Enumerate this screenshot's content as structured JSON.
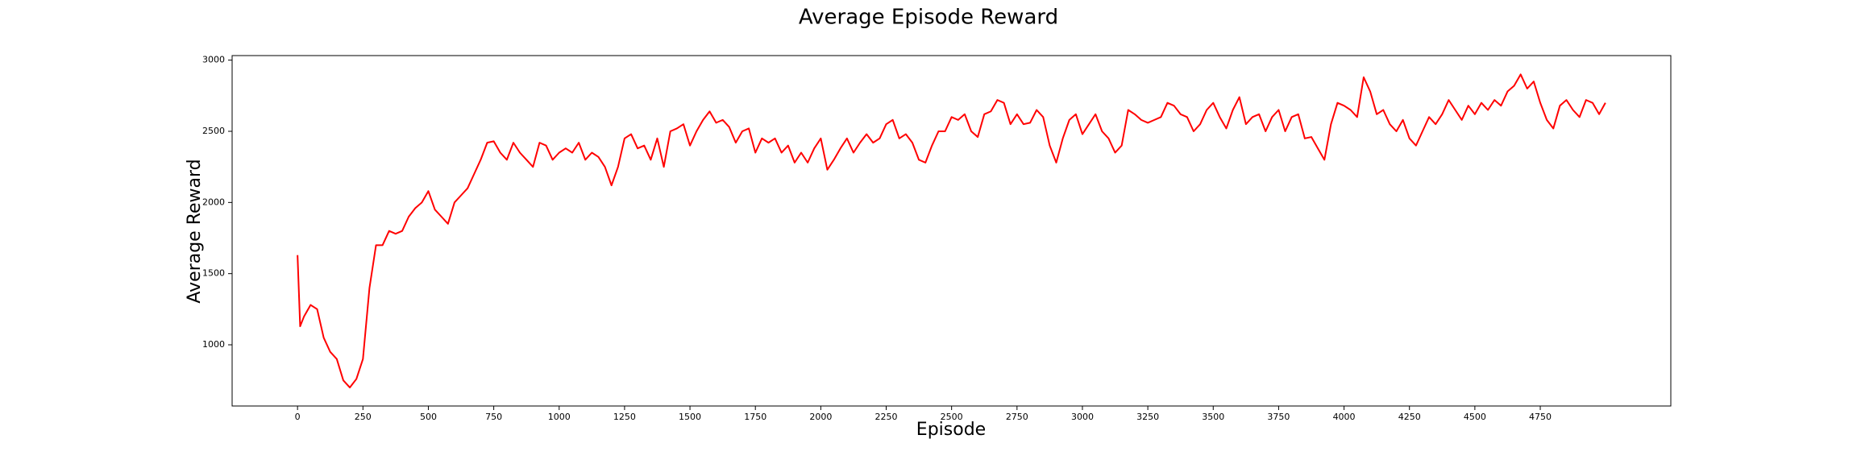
{
  "chart_data": {
    "type": "line",
    "title": "Average Episode Reward",
    "xlabel": "Episode",
    "ylabel": "Average Reward",
    "x": [
      0,
      10,
      25,
      50,
      75,
      100,
      125,
      150,
      175,
      200,
      225,
      250,
      275,
      300,
      325,
      350,
      375,
      400,
      425,
      450,
      475,
      500,
      525,
      550,
      575,
      600,
      625,
      650,
      675,
      700,
      725,
      750,
      775,
      800,
      825,
      850,
      875,
      900,
      925,
      950,
      975,
      1000,
      1025,
      1050,
      1075,
      1100,
      1125,
      1150,
      1175,
      1200,
      1225,
      1250,
      1275,
      1300,
      1325,
      1350,
      1375,
      1400,
      1425,
      1450,
      1475,
      1500,
      1525,
      1550,
      1575,
      1600,
      1625,
      1650,
      1675,
      1700,
      1725,
      1750,
      1775,
      1800,
      1825,
      1850,
      1875,
      1900,
      1925,
      1950,
      1975,
      2000,
      2025,
      2050,
      2075,
      2100,
      2125,
      2150,
      2175,
      2200,
      2225,
      2250,
      2275,
      2300,
      2325,
      2350,
      2375,
      2400,
      2425,
      2450,
      2475,
      2500,
      2525,
      2550,
      2575,
      2600,
      2625,
      2650,
      2675,
      2700,
      2725,
      2750,
      2775,
      2800,
      2825,
      2850,
      2875,
      2900,
      2925,
      2950,
      2975,
      3000,
      3025,
      3050,
      3075,
      3100,
      3125,
      3150,
      3175,
      3200,
      3225,
      3250,
      3275,
      3300,
      3325,
      3350,
      3375,
      3400,
      3425,
      3450,
      3475,
      3500,
      3525,
      3550,
      3575,
      3600,
      3625,
      3650,
      3675,
      3700,
      3725,
      3750,
      3775,
      3800,
      3825,
      3850,
      3875,
      3900,
      3925,
      3950,
      3975,
      4000,
      4025,
      4050,
      4075,
      4100,
      4125,
      4150,
      4175,
      4200,
      4225,
      4250,
      4275,
      4300,
      4325,
      4350,
      4375,
      4400,
      4425,
      4450,
      4475,
      4500,
      4525,
      4550,
      4575,
      4600,
      4625,
      4650,
      4675,
      4700,
      4725,
      4750,
      4775,
      4800,
      4825,
      4850,
      4875,
      4900,
      4925,
      4950,
      4975,
      4999
    ],
    "series": [
      {
        "name": "Average Reward",
        "color": "#ff0000",
        "values": [
          1630,
          1130,
          1200,
          1280,
          1250,
          1050,
          950,
          900,
          750,
          700,
          760,
          900,
          1400,
          1700,
          1700,
          1800,
          1780,
          1800,
          1900,
          1960,
          2000,
          2080,
          1950,
          1900,
          1850,
          2000,
          2050,
          2100,
          2200,
          2300,
          2420,
          2430,
          2350,
          2300,
          2420,
          2350,
          2300,
          2250,
          2420,
          2400,
          2300,
          2350,
          2380,
          2350,
          2420,
          2300,
          2350,
          2320,
          2250,
          2120,
          2250,
          2450,
          2480,
          2380,
          2400,
          2300,
          2450,
          2250,
          2500,
          2520,
          2550,
          2400,
          2500,
          2580,
          2640,
          2560,
          2580,
          2530,
          2420,
          2500,
          2520,
          2350,
          2450,
          2420,
          2450,
          2350,
          2400,
          2280,
          2350,
          2280,
          2380,
          2450,
          2230,
          2300,
          2380,
          2450,
          2350,
          2420,
          2480,
          2420,
          2450,
          2550,
          2580,
          2450,
          2480,
          2420,
          2300,
          2280,
          2400,
          2500,
          2500,
          2600,
          2580,
          2620,
          2500,
          2460,
          2620,
          2640,
          2720,
          2700,
          2550,
          2620,
          2550,
          2560,
          2650,
          2600,
          2400,
          2280,
          2450,
          2580,
          2620,
          2480,
          2550,
          2620,
          2500,
          2450,
          2350,
          2400,
          2650,
          2620,
          2580,
          2560,
          2580,
          2600,
          2700,
          2680,
          2620,
          2600,
          2500,
          2550,
          2650,
          2700,
          2600,
          2520,
          2650,
          2740,
          2550,
          2600,
          2620,
          2500,
          2600,
          2650,
          2500,
          2600,
          2620,
          2450,
          2460,
          2380,
          2300,
          2550,
          2700,
          2680,
          2650,
          2600,
          2880,
          2780,
          2620,
          2650,
          2550,
          2500,
          2580,
          2450,
          2400,
          2500,
          2600,
          2550,
          2620,
          2720,
          2650,
          2580,
          2680,
          2620,
          2700,
          2650,
          2720,
          2680,
          2780,
          2820,
          2900,
          2800,
          2850,
          2700,
          2580,
          2520,
          2680,
          2720,
          2650,
          2600,
          2720,
          2700,
          2620,
          2700
        ]
      }
    ],
    "xlim": [
      -250,
      5249
    ],
    "ylim": [
      570,
      3032
    ],
    "xticks": [
      0,
      250,
      500,
      750,
      1000,
      1250,
      1500,
      1750,
      2000,
      2250,
      2500,
      2750,
      3000,
      3250,
      3500,
      3750,
      4000,
      4250,
      4500,
      4750
    ],
    "yticks": [
      1000,
      1500,
      2000,
      2500,
      3000
    ],
    "grid": false
  }
}
